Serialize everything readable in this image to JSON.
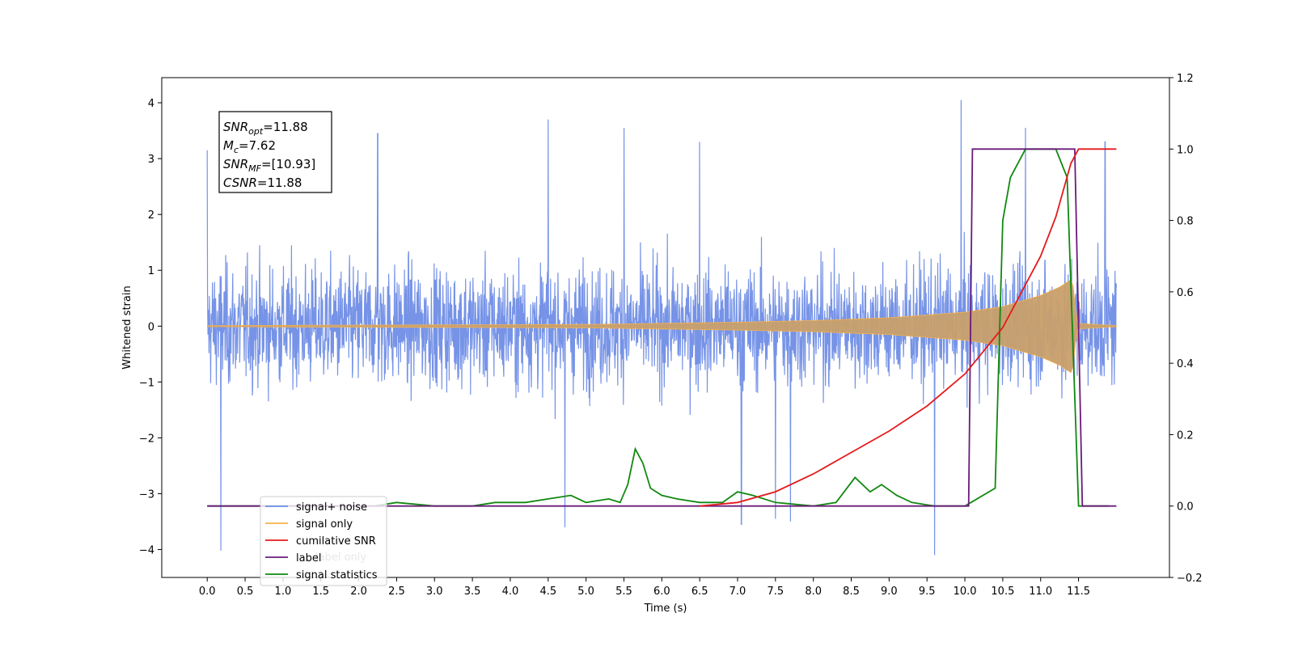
{
  "chart_data": {
    "type": "line",
    "xlabel": "Time (s)",
    "ylabel": "Whitened strain",
    "ylabel_right": "",
    "xlim": [
      -0.6,
      12.7
    ],
    "ylim": [
      -4.5,
      4.45
    ],
    "ylim_right": [
      -0.2,
      1.2
    ],
    "x_ticks": [
      "0.0",
      "0.5",
      "1.0",
      "1.5",
      "2.0",
      "2.5",
      "3.0",
      "3.5",
      "4.0",
      "4.5",
      "5.0",
      "5.5",
      "6.0",
      "6.5",
      "7.0",
      "7.5",
      "8.0",
      "8.5",
      "9.0",
      "9.5",
      "10.0",
      "10.5",
      "11.0",
      "11.5"
    ],
    "y_ticks": [
      "4",
      "3",
      "2",
      "1",
      "0",
      "−1",
      "−2",
      "−3",
      "−4"
    ],
    "y_ticks_right": [
      "1.2",
      "1.0",
      "0.8",
      "0.6",
      "0.4",
      "0.2",
      "0.0",
      "−0.2"
    ],
    "legend_position": "lower-left",
    "legend": [
      {
        "label": "signal+ noise",
        "color": "#6f8de6"
      },
      {
        "label": "signal only",
        "color": "#f7b24b"
      },
      {
        "label": "cumilative SNR",
        "color": "#e41a1c"
      },
      {
        "label": "label",
        "color": "#6a1b7a"
      },
      {
        "label": "signal statistics",
        "color": "#118811"
      }
    ],
    "legend_ghost_text": "label only",
    "stats_box": [
      {
        "sym": "SNR",
        "sub": "opt",
        "val": "=11.88"
      },
      {
        "sym": "M",
        "sub": "c",
        "val": "=7.62"
      },
      {
        "sym": "SNR",
        "sub": "MF",
        "val": "=[10.93]"
      },
      {
        "sym": "CSNR",
        "sub": "",
        "val": "=11.88"
      }
    ],
    "series": [
      {
        "name": "signal+ noise",
        "axis": "left",
        "color": "#6f8de6",
        "x_range": [
          0.0,
          12.0
        ],
        "envelope_typical": 1.8,
        "spikes": [
          [
            0.0,
            3.15
          ],
          [
            0.18,
            -4.02
          ],
          [
            2.25,
            3.45
          ],
          [
            4.5,
            3.7
          ],
          [
            4.72,
            -3.6
          ],
          [
            5.5,
            3.55
          ],
          [
            6.5,
            3.3
          ],
          [
            7.05,
            -3.55
          ],
          [
            7.5,
            -3.45
          ],
          [
            7.7,
            -3.5
          ],
          [
            9.6,
            -4.1
          ],
          [
            9.95,
            4.05
          ],
          [
            10.8,
            3.55
          ],
          [
            11.85,
            3.3
          ]
        ]
      },
      {
        "name": "signal only",
        "axis": "left",
        "color": "#f7b24b",
        "envelope": [
          [
            0.0,
            0.01
          ],
          [
            5.0,
            0.03
          ],
          [
            7.0,
            0.07
          ],
          [
            8.0,
            0.1
          ],
          [
            9.0,
            0.15
          ],
          [
            10.0,
            0.25
          ],
          [
            10.5,
            0.35
          ],
          [
            11.0,
            0.55
          ],
          [
            11.25,
            0.7
          ],
          [
            11.42,
            0.85
          ],
          [
            11.48,
            0.05
          ],
          [
            12.0,
            0.01
          ]
        ]
      },
      {
        "name": "cumilative SNR",
        "axis": "right",
        "color": "#e41a1c",
        "points": [
          [
            6.5,
            0.0
          ],
          [
            7.0,
            0.01
          ],
          [
            7.5,
            0.04
          ],
          [
            8.0,
            0.09
          ],
          [
            8.5,
            0.15
          ],
          [
            9.0,
            0.21
          ],
          [
            9.5,
            0.28
          ],
          [
            10.0,
            0.37
          ],
          [
            10.5,
            0.5
          ],
          [
            11.0,
            0.7
          ],
          [
            11.2,
            0.81
          ],
          [
            11.4,
            0.96
          ],
          [
            11.5,
            1.0
          ],
          [
            12.0,
            1.0
          ]
        ]
      },
      {
        "name": "label",
        "axis": "right",
        "color": "#6a1b7a",
        "points": [
          [
            0.0,
            0.0
          ],
          [
            10.05,
            0.0
          ],
          [
            10.1,
            1.0
          ],
          [
            11.45,
            1.0
          ],
          [
            11.55,
            0.0
          ],
          [
            12.0,
            0.0
          ]
        ]
      },
      {
        "name": "signal statistics",
        "axis": "right",
        "color": "#118811",
        "points": [
          [
            0.0,
            0.0
          ],
          [
            2.2,
            0.0
          ],
          [
            2.5,
            0.01
          ],
          [
            3.0,
            0.0
          ],
          [
            3.5,
            0.0
          ],
          [
            3.8,
            0.01
          ],
          [
            4.2,
            0.01
          ],
          [
            4.5,
            0.02
          ],
          [
            4.8,
            0.03
          ],
          [
            5.0,
            0.01
          ],
          [
            5.3,
            0.02
          ],
          [
            5.45,
            0.01
          ],
          [
            5.55,
            0.06
          ],
          [
            5.65,
            0.16
          ],
          [
            5.75,
            0.12
          ],
          [
            5.85,
            0.05
          ],
          [
            6.0,
            0.03
          ],
          [
            6.2,
            0.02
          ],
          [
            6.5,
            0.01
          ],
          [
            6.8,
            0.01
          ],
          [
            7.0,
            0.04
          ],
          [
            7.2,
            0.03
          ],
          [
            7.5,
            0.01
          ],
          [
            8.0,
            0.0
          ],
          [
            8.3,
            0.01
          ],
          [
            8.55,
            0.08
          ],
          [
            8.75,
            0.04
          ],
          [
            8.9,
            0.06
          ],
          [
            9.1,
            0.03
          ],
          [
            9.3,
            0.01
          ],
          [
            9.6,
            0.0
          ],
          [
            10.0,
            0.0
          ],
          [
            10.4,
            0.05
          ],
          [
            10.5,
            0.8
          ],
          [
            10.6,
            0.92
          ],
          [
            10.8,
            1.0
          ],
          [
            11.2,
            1.0
          ],
          [
            11.35,
            0.92
          ],
          [
            11.5,
            0.0
          ],
          [
            11.9,
            0.0
          ]
        ]
      }
    ]
  }
}
